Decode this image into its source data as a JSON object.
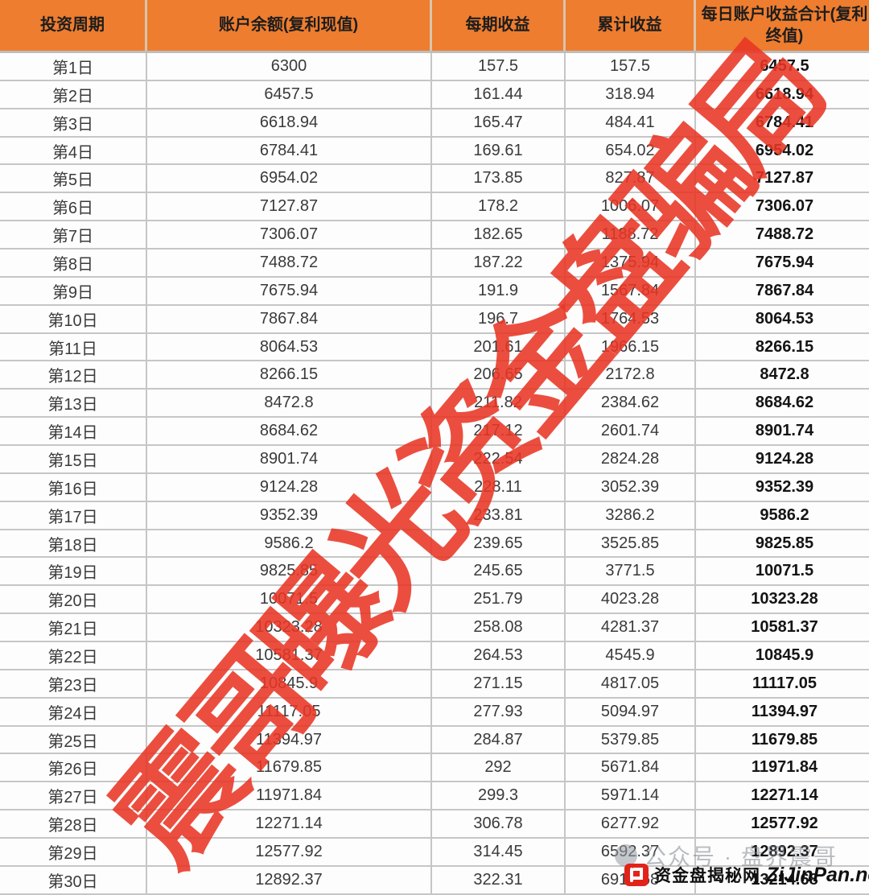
{
  "table": {
    "columns": [
      {
        "label": "投资周期"
      },
      {
        "label": "账户余额(复利现值)"
      },
      {
        "label": "每期收益"
      },
      {
        "label": "累计收益"
      },
      {
        "label": "每日账户收益合计(复利终值)"
      }
    ],
    "rows": [
      {
        "day": "第1日",
        "balance": "6300",
        "profit": "157.5",
        "cumulative": "157.5",
        "total": "6457.5"
      },
      {
        "day": "第2日",
        "balance": "6457.5",
        "profit": "161.44",
        "cumulative": "318.94",
        "total": "6618.94"
      },
      {
        "day": "第3日",
        "balance": "6618.94",
        "profit": "165.47",
        "cumulative": "484.41",
        "total": "6784.41"
      },
      {
        "day": "第4日",
        "balance": "6784.41",
        "profit": "169.61",
        "cumulative": "654.02",
        "total": "6954.02"
      },
      {
        "day": "第5日",
        "balance": "6954.02",
        "profit": "173.85",
        "cumulative": "827.87",
        "total": "7127.87"
      },
      {
        "day": "第6日",
        "balance": "7127.87",
        "profit": "178.2",
        "cumulative": "1006.07",
        "total": "7306.07"
      },
      {
        "day": "第7日",
        "balance": "7306.07",
        "profit": "182.65",
        "cumulative": "1188.72",
        "total": "7488.72"
      },
      {
        "day": "第8日",
        "balance": "7488.72",
        "profit": "187.22",
        "cumulative": "1375.94",
        "total": "7675.94"
      },
      {
        "day": "第9日",
        "balance": "7675.94",
        "profit": "191.9",
        "cumulative": "1567.84",
        "total": "7867.84"
      },
      {
        "day": "第10日",
        "balance": "7867.84",
        "profit": "196.7",
        "cumulative": "1764.53",
        "total": "8064.53"
      },
      {
        "day": "第11日",
        "balance": "8064.53",
        "profit": "201.61",
        "cumulative": "1966.15",
        "total": "8266.15"
      },
      {
        "day": "第12日",
        "balance": "8266.15",
        "profit": "206.65",
        "cumulative": "2172.8",
        "total": "8472.8"
      },
      {
        "day": "第13日",
        "balance": "8472.8",
        "profit": "211.82",
        "cumulative": "2384.62",
        "total": "8684.62"
      },
      {
        "day": "第14日",
        "balance": "8684.62",
        "profit": "217.12",
        "cumulative": "2601.74",
        "total": "8901.74"
      },
      {
        "day": "第15日",
        "balance": "8901.74",
        "profit": "222.54",
        "cumulative": "2824.28",
        "total": "9124.28"
      },
      {
        "day": "第16日",
        "balance": "9124.28",
        "profit": "228.11",
        "cumulative": "3052.39",
        "total": "9352.39"
      },
      {
        "day": "第17日",
        "balance": "9352.39",
        "profit": "233.81",
        "cumulative": "3286.2",
        "total": "9586.2"
      },
      {
        "day": "第18日",
        "balance": "9586.2",
        "profit": "239.65",
        "cumulative": "3525.85",
        "total": "9825.85"
      },
      {
        "day": "第19日",
        "balance": "9825.85",
        "profit": "245.65",
        "cumulative": "3771.5",
        "total": "10071.5"
      },
      {
        "day": "第20日",
        "balance": "10071.5",
        "profit": "251.79",
        "cumulative": "4023.28",
        "total": "10323.28"
      },
      {
        "day": "第21日",
        "balance": "10323.28",
        "profit": "258.08",
        "cumulative": "4281.37",
        "total": "10581.37"
      },
      {
        "day": "第22日",
        "balance": "10581.37",
        "profit": "264.53",
        "cumulative": "4545.9",
        "total": "10845.9"
      },
      {
        "day": "第23日",
        "balance": "10845.9",
        "profit": "271.15",
        "cumulative": "4817.05",
        "total": "11117.05"
      },
      {
        "day": "第24日",
        "balance": "11117.05",
        "profit": "277.93",
        "cumulative": "5094.97",
        "total": "11394.97"
      },
      {
        "day": "第25日",
        "balance": "11394.97",
        "profit": "284.87",
        "cumulative": "5379.85",
        "total": "11679.85"
      },
      {
        "day": "第26日",
        "balance": "11679.85",
        "profit": "292",
        "cumulative": "5671.84",
        "total": "11971.84"
      },
      {
        "day": "第27日",
        "balance": "11971.84",
        "profit": "299.3",
        "cumulative": "5971.14",
        "total": "12271.14"
      },
      {
        "day": "第28日",
        "balance": "12271.14",
        "profit": "306.78",
        "cumulative": "6277.92",
        "total": "12577.92"
      },
      {
        "day": "第29日",
        "balance": "12577.92",
        "profit": "314.45",
        "cumulative": "6592.37",
        "total": "12892.37"
      },
      {
        "day": "第30日",
        "balance": "12892.37",
        "profit": "322.31",
        "cumulative": "6914.68",
        "total": "13214.68"
      }
    ]
  },
  "watermarks": {
    "stamp_text": "震哥曝光资金盘骗局",
    "stamp_color": "#e83624",
    "account_line": "公众号 · 盘界震哥",
    "site_name_cn": "资金盘揭秘网",
    "site_domain": "ZiJinPan.net",
    "logo_color": "#e2231a"
  },
  "theme": {
    "header_bg": "#ee7d2f",
    "header_text": "#1d1d1d",
    "grid_line": "#c6c6c6",
    "cell_text": "#3a3a3a",
    "total_col_text": "#141414"
  },
  "chart_data": {
    "type": "table",
    "title": "",
    "columns": [
      "投资周期",
      "账户余额(复利现值)",
      "每期收益",
      "累计收益",
      "每日账户收益合计(复利终值)"
    ],
    "rows": [
      [
        "第1日",
        6300,
        157.5,
        157.5,
        6457.5
      ],
      [
        "第2日",
        6457.5,
        161.44,
        318.94,
        6618.94
      ],
      [
        "第3日",
        6618.94,
        165.47,
        484.41,
        6784.41
      ],
      [
        "第4日",
        6784.41,
        169.61,
        654.02,
        6954.02
      ],
      [
        "第5日",
        6954.02,
        173.85,
        827.87,
        7127.87
      ],
      [
        "第6日",
        7127.87,
        178.2,
        1006.07,
        7306.07
      ],
      [
        "第7日",
        7306.07,
        182.65,
        1188.72,
        7488.72
      ],
      [
        "第8日",
        7488.72,
        187.22,
        1375.94,
        7675.94
      ],
      [
        "第9日",
        7675.94,
        191.9,
        1567.84,
        7867.84
      ],
      [
        "第10日",
        7867.84,
        196.7,
        1764.53,
        8064.53
      ],
      [
        "第11日",
        8064.53,
        201.61,
        1966.15,
        8266.15
      ],
      [
        "第12日",
        8266.15,
        206.65,
        2172.8,
        8472.8
      ],
      [
        "第13日",
        8472.8,
        211.82,
        2384.62,
        8684.62
      ],
      [
        "第14日",
        8684.62,
        217.12,
        2601.74,
        8901.74
      ],
      [
        "第15日",
        8901.74,
        222.54,
        2824.28,
        9124.28
      ],
      [
        "第16日",
        9124.28,
        228.11,
        3052.39,
        9352.39
      ],
      [
        "第17日",
        9352.39,
        233.81,
        3286.2,
        9586.2
      ],
      [
        "第18日",
        9586.2,
        239.65,
        3525.85,
        9825.85
      ],
      [
        "第19日",
        9825.85,
        245.65,
        3771.5,
        10071.5
      ],
      [
        "第20日",
        10071.5,
        251.79,
        4023.28,
        10323.28
      ],
      [
        "第21日",
        10323.28,
        258.08,
        4281.37,
        10581.37
      ],
      [
        "第22日",
        10581.37,
        264.53,
        4545.9,
        10845.9
      ],
      [
        "第23日",
        10845.9,
        271.15,
        4817.05,
        11117.05
      ],
      [
        "第24日",
        11117.05,
        277.93,
        5094.97,
        11394.97
      ],
      [
        "第25日",
        11394.97,
        284.87,
        5379.85,
        11679.85
      ],
      [
        "第26日",
        11679.85,
        292,
        5671.84,
        11971.84
      ],
      [
        "第27日",
        11971.84,
        299.3,
        5971.14,
        12271.14
      ],
      [
        "第28日",
        12271.14,
        306.78,
        6277.92,
        12577.92
      ],
      [
        "第29日",
        12577.92,
        314.45,
        6592.37,
        12892.37
      ],
      [
        "第30日",
        12892.37,
        322.31,
        6914.68,
        13214.68
      ]
    ]
  }
}
